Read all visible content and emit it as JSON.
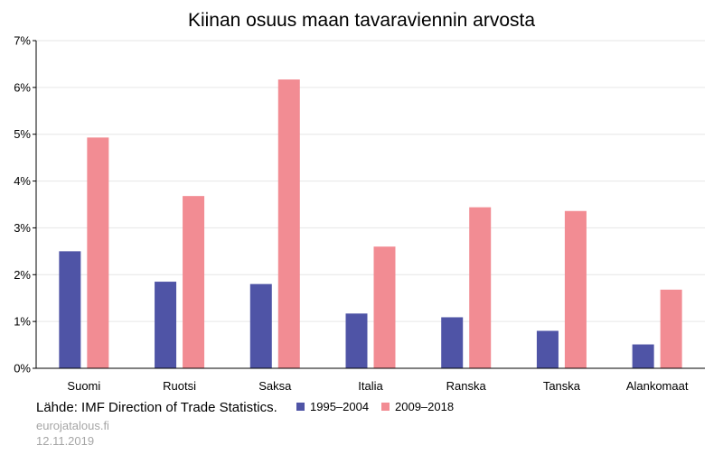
{
  "chart_data": {
    "type": "bar",
    "title": "Kiinan osuus maan tavaraviennin arvosta",
    "categories": [
      "Suomi",
      "Ruotsi",
      "Saksa",
      "Italia",
      "Ranska",
      "Tanska",
      "Alankomaat"
    ],
    "series": [
      {
        "name": "1995–2004",
        "color": "#4f54a6",
        "values": [
          2.5,
          1.85,
          1.8,
          1.17,
          1.09,
          0.8,
          0.51
        ]
      },
      {
        "name": "2009–2018",
        "color": "#f28c93",
        "values": [
          4.93,
          3.68,
          6.17,
          2.6,
          3.44,
          3.36,
          1.68
        ]
      }
    ],
    "ylim": [
      0,
      7
    ],
    "yticks": [
      "0%",
      "1%",
      "2%",
      "3%",
      "4%",
      "5%",
      "6%",
      "7%"
    ],
    "xlabel": "",
    "ylabel": "",
    "grid": true,
    "legend": "bottom"
  },
  "source": "Lähde: IMF Direction of Trade Statistics.",
  "footer": {
    "site": "eurojatalous.fi",
    "date": "12.11.2019"
  }
}
